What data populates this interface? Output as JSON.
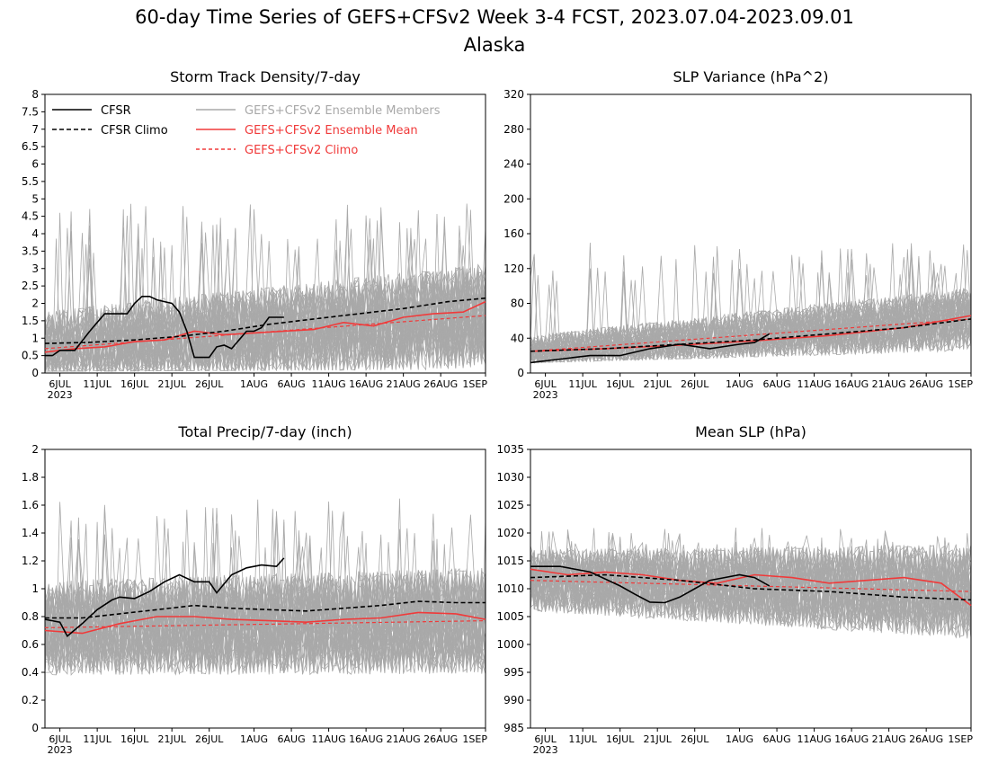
{
  "title": "60-day Time Series of GEFS+CFSv2 Week 3-4 FCST, 2023.07.04-2023.09.01",
  "subtitle": "Alaska",
  "legend": {
    "cfsr": "CFSR",
    "cfsr_climo": "CFSR Climo",
    "members": "GEFS+CFSv2 Ensemble Members",
    "ens_mean": "GEFS+CFSv2 Ensemble Mean",
    "ens_climo": "GEFS+CFSv2 Climo"
  },
  "colors": {
    "cfsr": "#000000",
    "members": "#a9a9a9",
    "ens_mean": "#f03a3a",
    "ens_climo": "#f03a3a"
  },
  "x_ticks": [
    "6JUL",
    "11JUL",
    "16JUL",
    "21JUL",
    "26JUL",
    "1AUG",
    "6AUG",
    "11AUG",
    "16AUG",
    "21AUG",
    "26AUG",
    "1SEP"
  ],
  "x_year": "2023",
  "chart_data": [
    {
      "type": "line",
      "title": "Storm Track Density/7-day",
      "xlabel": "",
      "ylabel": "",
      "x": "day index 0 (4JUL) .. 59 (1SEP)",
      "ylim": [
        0,
        8
      ],
      "yticks": [
        "0",
        "0.5",
        "1",
        "1.5",
        "2",
        "2.5",
        "3",
        "3.5",
        "4",
        "4.5",
        "5",
        "5.5",
        "6",
        "6.5",
        "7",
        "7.5",
        "8"
      ],
      "legend_position": "top",
      "series": [
        {
          "name": "CFSR",
          "x": [
            0,
            1,
            2,
            4,
            6,
            8,
            9,
            10,
            11,
            12,
            13,
            14,
            15,
            16,
            17,
            18,
            19,
            20,
            21,
            22,
            23,
            24,
            25,
            26,
            27,
            28,
            29,
            30,
            31,
            32
          ],
          "values": [
            0.5,
            0.5,
            0.65,
            0.65,
            1.2,
            1.7,
            1.7,
            1.7,
            1.7,
            2.0,
            2.2,
            2.2,
            2.1,
            2.05,
            2.0,
            1.75,
            1.2,
            0.45,
            0.45,
            0.45,
            0.75,
            0.8,
            0.7,
            0.95,
            1.2,
            1.2,
            1.3,
            1.6,
            1.6,
            1.6
          ]
        },
        {
          "name": "CFSR Climo",
          "x": [
            0,
            6,
            12,
            18,
            24,
            30,
            36,
            42,
            48,
            54,
            59
          ],
          "values": [
            0.85,
            0.88,
            0.95,
            1.05,
            1.2,
            1.4,
            1.55,
            1.7,
            1.85,
            2.05,
            2.15
          ]
        },
        {
          "name": "GEFS+CFSv2 Ensemble Mean",
          "x": [
            0,
            4,
            8,
            12,
            16,
            20,
            24,
            28,
            32,
            36,
            40,
            44,
            48,
            52,
            56,
            59
          ],
          "values": [
            0.6,
            0.7,
            0.75,
            0.9,
            0.95,
            1.2,
            1.1,
            1.15,
            1.2,
            1.25,
            1.45,
            1.35,
            1.6,
            1.7,
            1.75,
            2.05
          ]
        },
        {
          "name": "GEFS+CFSv2 Climo",
          "x": [
            0,
            59
          ],
          "values": [
            0.7,
            1.65
          ]
        }
      ],
      "members_band": {
        "low": [
          0.05,
          0.1
        ],
        "high": [
          2.6,
          3.6
        ],
        "spikes_max": 4.9
      }
    },
    {
      "type": "line",
      "title": "SLP Variance (hPa^2)",
      "xlabel": "",
      "ylabel": "",
      "ylim": [
        0,
        320
      ],
      "yticks": [
        "0",
        "40",
        "80",
        "120",
        "160",
        "200",
        "240",
        "280",
        "320"
      ],
      "series": [
        {
          "name": "CFSR",
          "x": [
            0,
            4,
            8,
            12,
            16,
            20,
            24,
            28,
            30,
            32
          ],
          "values": [
            12,
            16,
            20,
            20,
            28,
            33,
            28,
            33,
            35,
            45
          ]
        },
        {
          "name": "CFSR Climo",
          "x": [
            0,
            10,
            20,
            30,
            40,
            50,
            59
          ],
          "values": [
            25,
            28,
            33,
            38,
            45,
            52,
            62
          ]
        },
        {
          "name": "GEFS+CFSv2 Ensemble Mean",
          "x": [
            0,
            10,
            20,
            30,
            40,
            50,
            59
          ],
          "values": [
            25,
            28,
            32,
            37,
            43,
            52,
            66
          ]
        },
        {
          "name": "GEFS+CFSv2 Climo",
          "x": [
            0,
            59
          ],
          "values": [
            25,
            62
          ]
        }
      ],
      "members_band": {
        "low": [
          12,
          25
        ],
        "high": [
          55,
          110
        ],
        "spikes_max": 150
      }
    },
    {
      "type": "line",
      "title": "Total Precip/7-day (inch)",
      "xlabel": "",
      "ylabel": "",
      "ylim": [
        0,
        2
      ],
      "yticks": [
        "0",
        "0.2",
        "0.4",
        "0.6",
        "0.8",
        "1",
        "1.2",
        "1.4",
        "1.6",
        "1.8",
        "2"
      ],
      "series": [
        {
          "name": "CFSR",
          "x": [
            0,
            2,
            3,
            5,
            7,
            9,
            10,
            12,
            14,
            16,
            18,
            20,
            22,
            23,
            25,
            27,
            29,
            31,
            32
          ],
          "values": [
            0.78,
            0.76,
            0.66,
            0.75,
            0.85,
            0.92,
            0.94,
            0.93,
            0.98,
            1.05,
            1.1,
            1.05,
            1.05,
            0.97,
            1.1,
            1.15,
            1.17,
            1.16,
            1.22
          ]
        },
        {
          "name": "CFSR Climo",
          "x": [
            0,
            5,
            10,
            15,
            20,
            25,
            30,
            35,
            40,
            45,
            50,
            55,
            59
          ],
          "values": [
            0.79,
            0.79,
            0.82,
            0.85,
            0.88,
            0.86,
            0.85,
            0.84,
            0.86,
            0.88,
            0.91,
            0.9,
            0.9
          ]
        },
        {
          "name": "GEFS+CFSv2 Ensemble Mean",
          "x": [
            0,
            5,
            10,
            15,
            20,
            25,
            30,
            35,
            40,
            45,
            50,
            55,
            59
          ],
          "values": [
            0.7,
            0.68,
            0.75,
            0.8,
            0.8,
            0.78,
            0.77,
            0.76,
            0.78,
            0.79,
            0.83,
            0.82,
            0.78
          ]
        },
        {
          "name": "GEFS+CFSv2 Climo",
          "x": [
            0,
            59
          ],
          "values": [
            0.72,
            0.77
          ]
        }
      ],
      "members_band": {
        "low": [
          0.35,
          0.3
        ],
        "high": [
          1.15,
          1.2
        ],
        "spikes_max": 1.65
      }
    },
    {
      "type": "line",
      "title": "Mean SLP (hPa)",
      "xlabel": "",
      "ylabel": "",
      "ylim": [
        985,
        1035
      ],
      "yticks": [
        "985",
        "990",
        "995",
        "1000",
        "1005",
        "1010",
        "1015",
        "1020",
        "1025",
        "1030",
        "1035"
      ],
      "series": [
        {
          "name": "CFSR",
          "x": [
            0,
            4,
            8,
            12,
            14,
            16,
            18,
            20,
            22,
            24,
            26,
            28,
            30,
            32
          ],
          "values": [
            1014,
            1014,
            1013,
            1010.5,
            1009,
            1007.6,
            1007.5,
            1008.5,
            1010,
            1011.5,
            1012,
            1012.5,
            1012,
            1010.5
          ]
        },
        {
          "name": "CFSR Climo",
          "x": [
            0,
            10,
            20,
            30,
            40,
            50,
            59
          ],
          "values": [
            1012,
            1012.5,
            1011.5,
            1010,
            1009.5,
            1008.5,
            1008
          ]
        },
        {
          "name": "GEFS+CFSv2 Ensemble Mean",
          "x": [
            0,
            5,
            10,
            15,
            20,
            25,
            30,
            35,
            40,
            45,
            50,
            55,
            59
          ],
          "values": [
            1013.5,
            1012.5,
            1013,
            1012.5,
            1011.5,
            1011,
            1012.5,
            1012,
            1011,
            1011.5,
            1012,
            1011,
            1007
          ]
        },
        {
          "name": "GEFS+CFSv2 Climo",
          "x": [
            0,
            59
          ],
          "values": [
            1011.5,
            1009.5
          ]
        }
      ],
      "members_band": {
        "low": [
          1006,
          1001
        ],
        "high": [
          1019,
          1021
        ],
        "spikes_max": 1021
      }
    }
  ]
}
